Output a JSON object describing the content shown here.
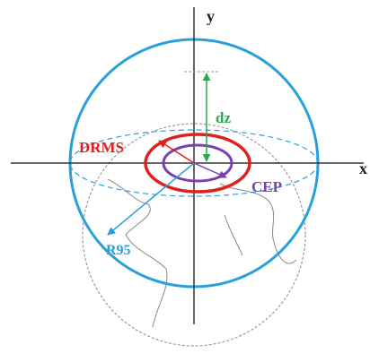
{
  "axes": {
    "x": "x",
    "y": "y"
  },
  "labels": {
    "dz": "dz",
    "drms": "DRMS",
    "cep": "CEP",
    "r95": "R95"
  }
}
